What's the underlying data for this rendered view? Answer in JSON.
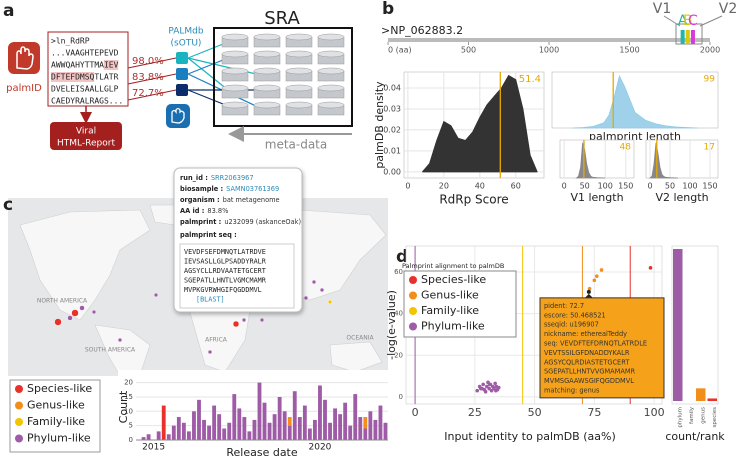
{
  "panel_a": {
    "label": "a",
    "app_name": "palmID",
    "query_lines": [
      ">ln_RdRP",
      "...VAAGHTEPEVD",
      "AWWQAHYTTMAIEV",
      "DFTEFDMSQTLATR",
      "DVELEISAALLGLP",
      "CAEDYRALRAGS..."
    ],
    "identities": [
      "98.0%",
      "83.8%",
      "72.7%"
    ],
    "report": [
      "Viral",
      "HTML-Report"
    ],
    "database": [
      "PALMdb",
      "(sOTU)"
    ],
    "archive": "SRA",
    "metadata": "meta-data"
  },
  "panel_b": {
    "label": "b",
    "protein": {
      "name": ">NP_062883.2",
      "xlim": [
        0,
        2000
      ],
      "xticks": [
        {
          "value": 0,
          "label": "0 (aa)"
        },
        500,
        1000,
        1500,
        2000
      ],
      "motifs": [
        {
          "name": "A",
          "color": "#22b5b0",
          "position": 1830
        },
        {
          "name": "B",
          "color": "#d9c90f",
          "position": 1862
        },
        {
          "name": "C",
          "color": "#d63bd6",
          "position": 1894
        }
      ],
      "regions": [
        "V1",
        "V2"
      ]
    },
    "score_chart": {
      "type": "area",
      "xlabel": "RdRp Score",
      "ylabel": "palmDB density",
      "color": "#333333",
      "x": [
        8,
        12,
        16,
        20,
        24,
        28,
        32,
        36,
        40,
        44,
        48,
        52,
        56,
        60,
        64,
        68,
        72
      ],
      "values": [
        0,
        0.004,
        0.015,
        0.024,
        0.022,
        0.016,
        0.015,
        0.019,
        0.026,
        0.032,
        0.036,
        0.04,
        0.046,
        0.044,
        0.03,
        0.008,
        0
      ],
      "xlim": [
        -2.16,
        75.7
      ],
      "ylim": [
        -0.0029,
        0.0476
      ],
      "xticks": [
        0,
        20,
        40,
        60
      ],
      "yticks": [
        {
          "value": 0,
          "label": "0.00"
        },
        {
          "value": 0.01,
          "label": "0.01"
        },
        {
          "value": 0.02,
          "label": "0.02"
        },
        {
          "value": 0.03,
          "label": "0.03"
        },
        {
          "value": 0.04,
          "label": "0.04"
        }
      ],
      "marker": 51.4,
      "marker_color": "#e8a800",
      "grid": true
    },
    "length_chart": {
      "type": "area",
      "xlabel": "palmprint length",
      "color": "#8ecae6",
      "x": [
        60,
        70,
        80,
        90,
        95,
        100,
        105,
        110,
        115,
        120,
        130,
        140,
        150,
        160,
        170,
        180
      ],
      "values": [
        0,
        1,
        3,
        10,
        25,
        60,
        100,
        80,
        55,
        30,
        15,
        8,
        4,
        2,
        1,
        0
      ],
      "xlim": [
        40,
        200
      ],
      "marker": 99,
      "marker_color": "#e8a800",
      "grid": true
    },
    "v1_chart": {
      "type": "area",
      "xlabel": "V1 length",
      "color": "#888888",
      "x": [
        30,
        35,
        40,
        45,
        50,
        55,
        60,
        65,
        70,
        80,
        100
      ],
      "values": [
        0,
        5,
        30,
        100,
        80,
        40,
        15,
        5,
        2,
        1,
        0
      ],
      "xlim": [
        -10,
        170
      ],
      "xticks": [
        0,
        50,
        100,
        150
      ],
      "marker": 48,
      "marker_color": "#e8a800",
      "grid": true
    },
    "v2_chart": {
      "type": "area",
      "xlabel": "V2 length",
      "color": "#888888",
      "x": [
        0,
        5,
        10,
        15,
        20,
        25,
        30,
        35,
        40,
        50,
        70
      ],
      "values": [
        0,
        5,
        40,
        100,
        70,
        30,
        10,
        4,
        2,
        1,
        0
      ],
      "xlim": [
        -10,
        170
      ],
      "xticks": [
        0,
        50,
        100,
        150
      ],
      "marker": 17,
      "marker_color": "#e8a800",
      "grid": true
    }
  },
  "panel_c": {
    "label": "c",
    "popup": {
      "fields": [
        {
          "key": "run_id :",
          "value": "SRR2063967"
        },
        {
          "key": "biosample :",
          "value": "SAMN03761369"
        },
        {
          "key": "organism :",
          "value": "bat metagenome"
        },
        {
          "key": "AA id :",
          "value": "83.8%"
        },
        {
          "key": "palmprint :",
          "value": "u232099 (askanceOak)"
        }
      ],
      "seq_title": "palmprint seq :",
      "sequence": [
        "VEVDFSEFDMNQTLATRDVE",
        "IEVSASLLGLPSADDYRALR",
        "AGSYCLLRDVAATETGCERT",
        "SGEPATLLHNTLVGMCMAMR",
        "MVPKGVRWHGIFQGDDMVL"
      ],
      "link": "[BLAST]"
    },
    "map_labels": [
      "NORTH AMERICA",
      "SOUTH AMERICA",
      "AFRICA",
      "OCEANIA"
    ],
    "legend": [
      {
        "name": "Species-like",
        "color": "#e8312a"
      },
      {
        "name": "Genus-like",
        "color": "#f28e1c"
      },
      {
        "name": "Family-like",
        "color": "#f5c400"
      },
      {
        "name": "Phylum-like",
        "color": "#9e5ba6"
      }
    ],
    "chart": {
      "type": "stacked_bar",
      "xlabel": "Release date",
      "ylabel": "Count",
      "categories": [
        null,
        null,
        null,
        "2015",
        null,
        null,
        null,
        null,
        null,
        null,
        null,
        null,
        null,
        null,
        null,
        null,
        null,
        null,
        null,
        null,
        null,
        null,
        null,
        null,
        null,
        null,
        null,
        null,
        null,
        null,
        null,
        null,
        null,
        null,
        null,
        null,
        "2020",
        null,
        null,
        null,
        null,
        null,
        null,
        null,
        null,
        null,
        null,
        null,
        null,
        null
      ],
      "series": [
        {
          "name": "Phylum-like",
          "color": "#9e5ba6",
          "values": [
            0,
            1,
            2,
            0,
            3,
            0,
            2,
            5,
            8,
            6,
            3,
            10,
            14,
            7,
            5,
            12,
            9,
            4,
            6,
            16,
            11,
            8,
            3,
            7,
            20,
            13,
            6,
            9,
            15,
            10,
            5,
            17,
            8,
            12,
            4,
            7,
            19,
            14,
            6,
            11,
            9,
            13,
            5,
            16,
            8,
            4,
            10,
            7,
            12,
            6
          ]
        },
        {
          "name": "Genus-like",
          "color": "#f28e1c",
          "values": [
            0,
            0,
            0,
            0,
            0,
            0,
            0,
            0,
            0,
            0,
            0,
            0,
            0,
            0,
            0,
            0,
            0,
            0,
            0,
            0,
            0,
            0,
            0,
            0,
            0,
            0,
            0,
            0,
            0,
            0,
            3,
            0,
            0,
            0,
            0,
            0,
            0,
            0,
            0,
            0,
            0,
            0,
            0,
            0,
            0,
            4,
            0,
            0,
            0,
            0
          ]
        },
        {
          "name": "Species-like",
          "color": "#e8312a",
          "values": [
            0,
            0,
            0,
            0,
            0,
            12,
            0,
            0,
            0,
            0,
            0,
            0,
            0,
            0,
            0,
            0,
            0,
            0,
            0,
            0,
            0,
            0,
            0,
            0,
            0,
            0,
            0,
            0,
            0,
            0,
            0,
            0,
            0,
            0,
            0,
            0,
            0,
            0,
            0,
            0,
            0,
            0,
            0,
            0,
            0,
            0,
            0,
            0,
            0,
            0
          ]
        }
      ],
      "ylim": [
        0,
        23
      ],
      "yticks": [
        0,
        5,
        10,
        15,
        20
      ],
      "grid": true
    }
  },
  "panel_d": {
    "label": "d",
    "chart": {
      "type": "scatter",
      "title": "Palmprint alignment to palmDB",
      "xlabel": "Input identity to palmDB (aa%)",
      "ylabel": "-log(e-value)",
      "xlim": [
        -3.8,
        103.3
      ],
      "ylim": [
        -3.4,
        72.5
      ],
      "xticks": [
        0,
        25,
        50,
        75,
        100
      ],
      "yticks": [
        0,
        20,
        40,
        60
      ],
      "grid": true,
      "thresholds": [
        {
          "value": 0,
          "color": "#9e5ba6"
        },
        {
          "value": 45,
          "color": "#f5c400"
        },
        {
          "value": 70,
          "color": "#f28e1c"
        },
        {
          "value": 90,
          "color": "#e8312a"
        }
      ],
      "series": [
        {
          "name": "Species-like",
          "color": "#e8312a",
          "x": [
            98.5
          ],
          "values": [
            62
          ]
        },
        {
          "name": "Genus-like",
          "color": "#f28e1c",
          "x": [
            73,
            75,
            76,
            78
          ],
          "values": [
            52,
            56,
            58,
            61
          ]
        },
        {
          "name": "Family-like",
          "color": "#f5c400",
          "x": [],
          "values": []
        },
        {
          "name": "Phylum-like",
          "color": "#9e5ba6",
          "x": [
            26,
            27,
            28,
            28.5,
            29,
            30,
            30.5,
            31,
            31.5,
            32,
            32.5,
            33,
            33.5,
            34,
            34.5,
            35,
            29.5,
            31.2,
            33.8,
            27.5
          ],
          "values": [
            3,
            5,
            4,
            6,
            3.5,
            5,
            7,
            4,
            6,
            3,
            5,
            4,
            6.5,
            5,
            3.5,
            4.5,
            2.5,
            6,
            3,
            4
          ]
        }
      ],
      "selected": {
        "x": 72.7,
        "value": 50.468521
      },
      "tooltip": [
        "pident: 72.7",
        "escore: 50.468521",
        "sseqid: u196907",
        "nickname: etherealTeddy",
        "seq: VEVDFTEFDRNQTLATRDLE",
        "VEVTSSILGFDNADDYKALR",
        "AGSYCQLRDIASTETGCERT",
        "SGEPATLLHNTVVGMAMAMR",
        "MVMSGAAWSGIFQGDDMVL",
        "matching: genus"
      ]
    },
    "rank_chart": {
      "type": "bar",
      "xlabel": "count/rank",
      "categories": [
        "phylum",
        "family",
        "genus",
        "species"
      ],
      "values": [
        60,
        0,
        5,
        1
      ],
      "colors": [
        "#9e5ba6",
        "#f5c400",
        "#f28e1c",
        "#e8312a"
      ]
    }
  }
}
